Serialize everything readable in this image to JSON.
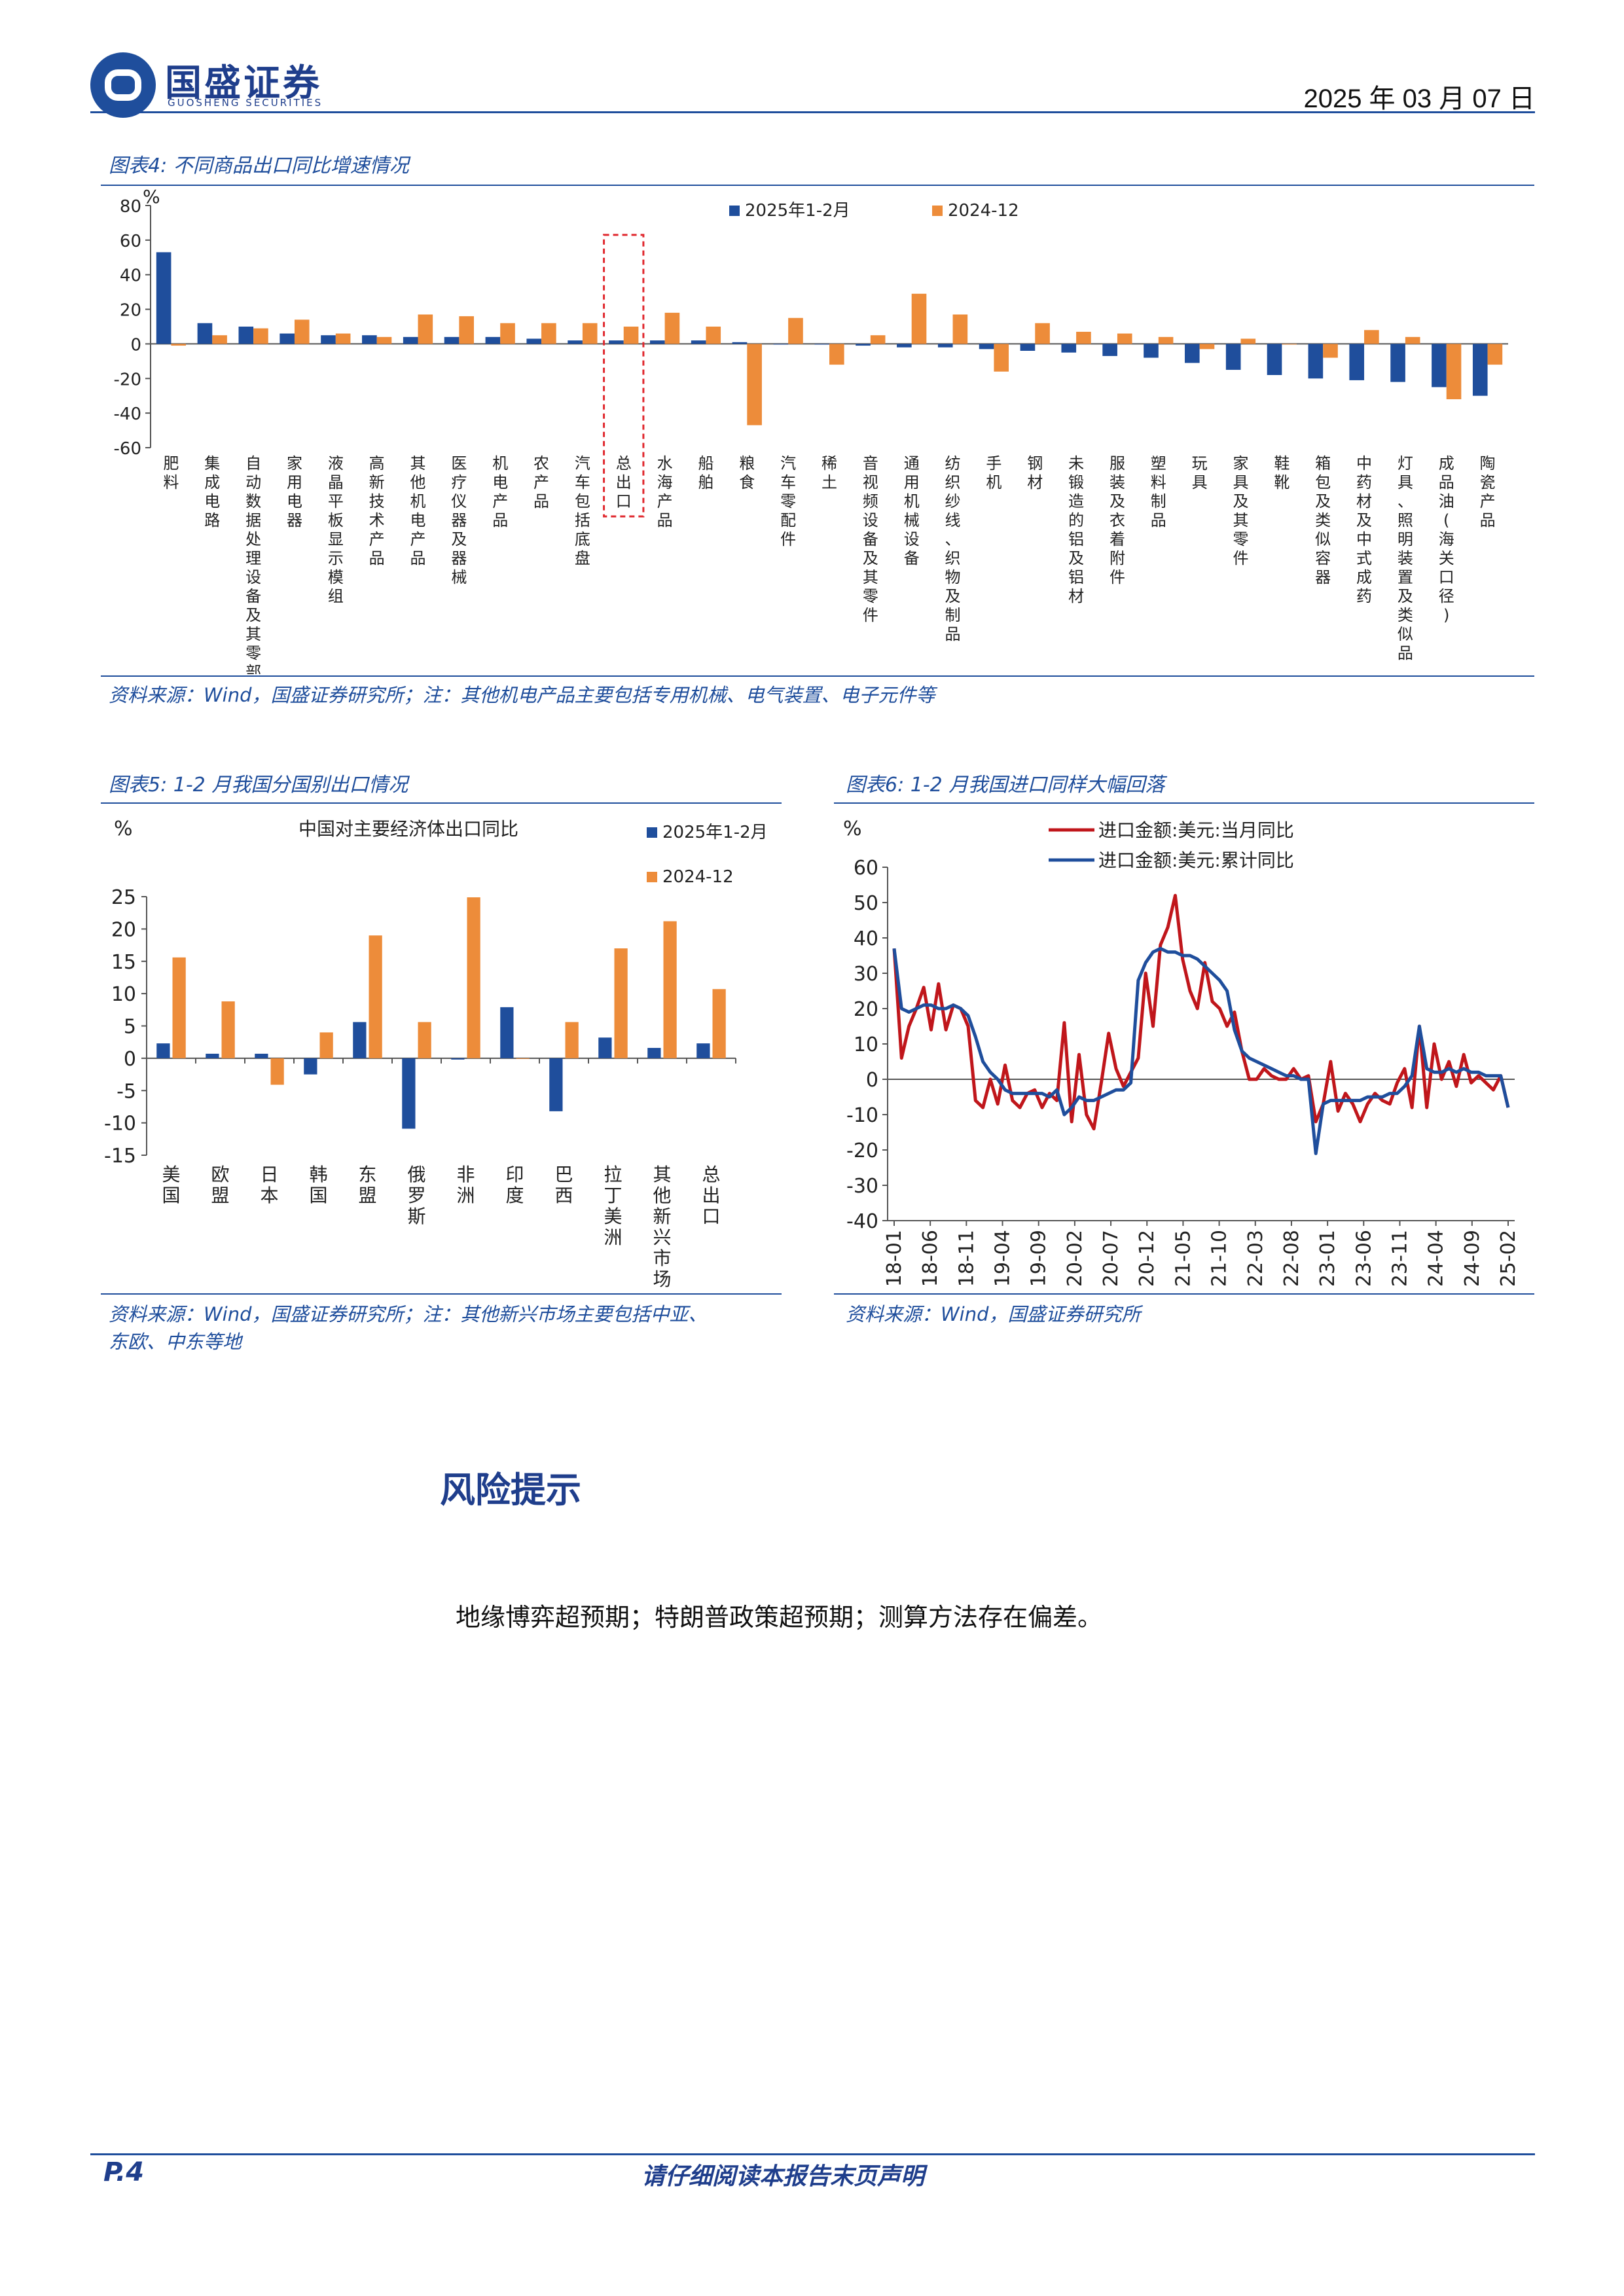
{
  "header": {
    "brand": "国盛证券",
    "brand_en": "GUOSHENG SECURITIES",
    "date": "2025 年 03 月 07 日"
  },
  "fig4": {
    "title": "图表4:  不同商品出口同比增速情况",
    "source": "资料来源：Wind，国盛证券研究所；注：其他机电产品主要包括专用机械、电气装置、电子元件等"
  },
  "fig5": {
    "title": "图表5:  1-2 月我国分国别出口情况",
    "source_line1": "资料来源：Wind，国盛证券研究所；注：其他新兴市场主要包括中亚、",
    "source_line2": "东欧、中东等地"
  },
  "fig6": {
    "title": "图表6:  1-2 月我国进口同样大幅回落",
    "source": "资料来源：Wind，国盛证券研究所"
  },
  "section": {
    "title": "风险提示",
    "body": "地缘博弈超预期；特朗普政策超预期；测算方法存在偏差。"
  },
  "footer": {
    "page": "P.4",
    "note": "请仔细阅读本报告末页声明"
  },
  "colors": {
    "blue": "#1f4e9c",
    "orange": "#ed8c3a",
    "red": "#c0161b",
    "navy": "#1f4e9c"
  },
  "chart_data": [
    {
      "type": "bar",
      "unit_label": "%",
      "ylim": [
        -60,
        80
      ],
      "yticks": [
        80,
        60,
        40,
        20,
        0,
        -20,
        -40,
        -60
      ],
      "categories": [
        "肥料",
        "集成电路",
        "自动数据处理设备及其零部件",
        "家用电器",
        "液晶平板显示模组",
        "高新技术产品",
        "其他机电产品",
        "医疗仪器及器械",
        "机电产品",
        "农产品",
        "汽车包括底盘",
        "总出口",
        "水海产品",
        "船舶",
        "粮食",
        "汽车零配件",
        "稀土",
        "音视频设备及其零件",
        "通用机械设备",
        "纺织纱线、织物及制品",
        "手机",
        "钢材",
        "未锻造的铝及铝材",
        "服装及衣着附件",
        "塑料制品",
        "玩具",
        "家具及其零件",
        "鞋靴",
        "箱包及类似容器",
        "中药材及中式成药",
        "灯具、照明装置及类似品",
        "成品油(海关口径)",
        "陶瓷产品"
      ],
      "series": [
        {
          "name": "2025年1-2月",
          "values": [
            53,
            12,
            10,
            6,
            5,
            5,
            4,
            4,
            4,
            3,
            2,
            2,
            2,
            2,
            1,
            0,
            0,
            -1,
            -2,
            -2,
            -3,
            -4,
            -5,
            -7,
            -8,
            -11,
            -15,
            -18,
            -20,
            -21,
            -22,
            -25,
            -30
          ]
        },
        {
          "name": "2024-12",
          "values": [
            -1,
            5,
            9,
            14,
            6,
            4,
            17,
            16,
            12,
            12,
            12,
            10,
            18,
            10,
            -47,
            15,
            -12,
            5,
            29,
            17,
            -16,
            12,
            7,
            6,
            4,
            -3,
            3,
            0,
            -8,
            8,
            4,
            -32,
            -12
          ]
        }
      ],
      "highlight_category": "总出口"
    },
    {
      "type": "bar",
      "title": "中国对主要经济体出口同比",
      "unit_label": "%",
      "ylim": [
        -15,
        25
      ],
      "yticks": [
        25,
        20,
        15,
        10,
        5,
        0,
        -5,
        -10,
        -15
      ],
      "categories": [
        "美国",
        "欧盟",
        "日本",
        "韩国",
        "东盟",
        "俄罗斯",
        "非洲",
        "印度",
        "巴西",
        "拉丁美洲",
        "其他新兴市场",
        "总出口"
      ],
      "series": [
        {
          "name": "2025年1-2月",
          "values": [
            2.3,
            0.7,
            0.7,
            -2.5,
            5.6,
            -10.9,
            -0.2,
            7.9,
            -8.2,
            3.2,
            1.6,
            2.3
          ]
        },
        {
          "name": "2024-12",
          "values": [
            15.6,
            8.8,
            -4.1,
            4.0,
            19.0,
            5.6,
            24.9,
            0,
            5.6,
            17.0,
            21.2,
            10.7
          ]
        }
      ]
    },
    {
      "type": "line",
      "unit_label": "%",
      "ylim": [
        -40,
        60
      ],
      "yticks": [
        60,
        50,
        40,
        30,
        20,
        10,
        0,
        -10,
        -20,
        -30,
        -40
      ],
      "xticks": [
        "18-01",
        "18-06",
        "18-11",
        "19-04",
        "19-09",
        "20-02",
        "20-07",
        "20-12",
        "21-05",
        "21-10",
        "22-03",
        "22-08",
        "23-01",
        "23-06",
        "23-11",
        "24-04",
        "24-09",
        "25-02"
      ],
      "series": [
        {
          "name": "进口金额:美元:当月同比",
          "values": [
            37,
            6,
            15,
            20,
            26,
            14,
            27,
            14,
            21,
            20,
            15,
            -6,
            -8,
            0,
            -7,
            4,
            -6,
            -8,
            -4,
            -3,
            -8,
            -4,
            -6,
            16,
            -12,
            7,
            -10,
            -14,
            -1,
            13,
            3,
            -2,
            2,
            6,
            30,
            15,
            38,
            43,
            52,
            34,
            25,
            20,
            33,
            22,
            20,
            15,
            19,
            8,
            0,
            0,
            3,
            1,
            0,
            0,
            3,
            0,
            1,
            -12,
            -7,
            5,
            -9,
            -4,
            -7,
            -12,
            -7,
            -4,
            -6,
            -7,
            -1,
            3,
            -8,
            15,
            -8,
            10,
            0,
            5,
            -2,
            7,
            -1,
            1,
            -1,
            -3,
            1,
            -8
          ]
        },
        {
          "name": "进口金额:美元:累计同比",
          "values": [
            37,
            20,
            19,
            20,
            21,
            21,
            20,
            20,
            21,
            20,
            18,
            12,
            5,
            2,
            0,
            -3,
            -4,
            -4,
            -4,
            -4,
            -4,
            -5,
            -3,
            -10,
            -8,
            -5,
            -6,
            -6,
            -5,
            -4,
            -3,
            -3,
            -1,
            28,
            33,
            36,
            37,
            36,
            36,
            35,
            35,
            34,
            32,
            30,
            28,
            25,
            14,
            8,
            6,
            5,
            4,
            3,
            2,
            1,
            1,
            0,
            0,
            -21,
            -7,
            -6,
            -6,
            -6,
            -6,
            -6,
            -5,
            -5,
            -5,
            -4,
            -4,
            -2,
            1,
            15,
            3,
            2,
            2,
            3,
            2,
            3,
            2,
            2,
            1,
            1,
            1,
            -8
          ]
        }
      ]
    }
  ]
}
